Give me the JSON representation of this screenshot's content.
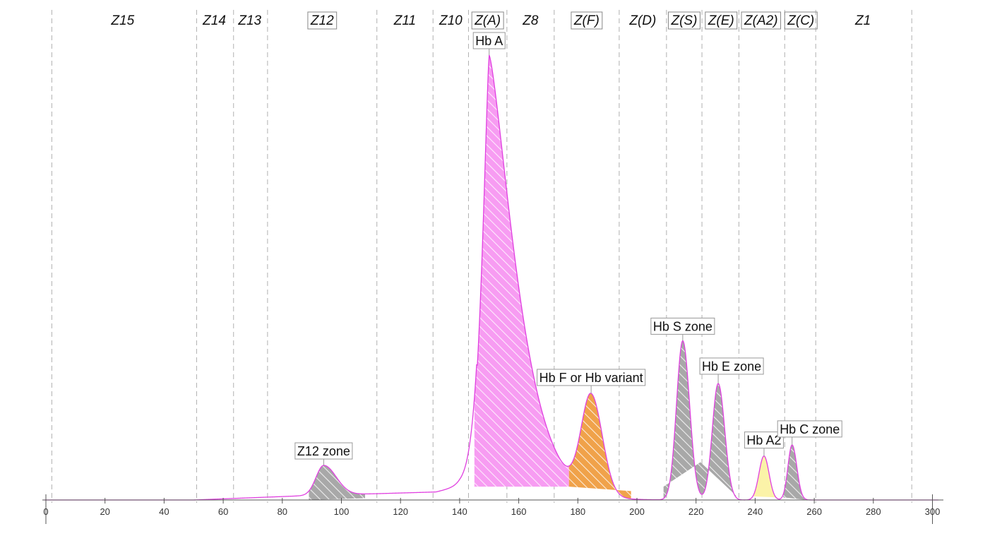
{
  "chart_data": {
    "type": "area",
    "title": "",
    "xlabel": "",
    "ylabel": "",
    "xlim": [
      0,
      303
    ],
    "ylim": [
      0,
      100
    ],
    "x_ticks": [
      0,
      20,
      40,
      60,
      80,
      100,
      120,
      140,
      160,
      180,
      200,
      220,
      240,
      260,
      280,
      300
    ],
    "grid": false,
    "zone_boundaries": [
      2,
      51,
      63.5,
      75,
      112,
      131,
      143,
      156,
      172,
      194,
      210,
      222,
      234.5,
      250,
      260.5,
      293
    ],
    "zones": [
      {
        "label": "Z15",
        "center": 26,
        "boxed": false
      },
      {
        "label": "Z14",
        "center": 57,
        "boxed": false
      },
      {
        "label": "Z13",
        "center": 69,
        "boxed": false
      },
      {
        "label": "Z12",
        "center": 93.5,
        "boxed": true
      },
      {
        "label": "Z11",
        "center": 121.5,
        "boxed": false
      },
      {
        "label": "Z10",
        "center": 137,
        "boxed": false
      },
      {
        "label": "Z(A)",
        "center": 149.5,
        "boxed": true
      },
      {
        "label": "Z8",
        "center": 164,
        "boxed": false
      },
      {
        "label": "Z(F)",
        "center": 183,
        "boxed": true
      },
      {
        "label": "Z(D)",
        "center": 202,
        "boxed": false
      },
      {
        "label": "Z(S)",
        "center": 216,
        "boxed": true
      },
      {
        "label": "Z(E)",
        "center": 228.5,
        "boxed": true
      },
      {
        "label": "Z(A2)",
        "center": 242,
        "boxed": true
      },
      {
        "label": "Z(C)",
        "center": 255.5,
        "boxed": true
      },
      {
        "label": "Z1",
        "center": 276.5,
        "boxed": false
      }
    ],
    "peaks": [
      {
        "label": "Z12 zone",
        "x": 94,
        "height": 6.7,
        "fill": "#a8a8a8"
      },
      {
        "label": "Hb A",
        "x": 150,
        "height": 100,
        "fill": "#f79cf2"
      },
      {
        "label": "Hb F or Hb variant",
        "x": 184.5,
        "height": 22,
        "fill": "#f0a24a"
      },
      {
        "label": "Hb S zone",
        "x": 215.5,
        "height": 35.8,
        "fill": "#a8a8a8"
      },
      {
        "label": "Hb E zone",
        "x": 227.5,
        "height": 26.2,
        "fill": "#a8a8a8"
      },
      {
        "label": "Hb A2",
        "x": 243,
        "height": 9.9,
        "fill": "#fbf3a8"
      },
      {
        "label": "Hb C zone",
        "x": 252.5,
        "height": 12.4,
        "fill": "#a8a8a8"
      }
    ],
    "curve_color": "#e040e0"
  }
}
